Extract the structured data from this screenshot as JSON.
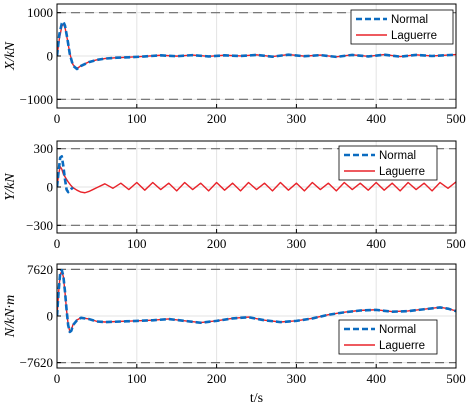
{
  "colors": {
    "normal": "#0a6bc0",
    "laguerre": "#e8232a",
    "limit": "#6b6b6b",
    "grid": "#e3e3e3"
  },
  "chart_data": [
    {
      "type": "line",
      "ylabel": "X/kN",
      "xlim": [
        0,
        500
      ],
      "ylim": [
        -1200,
        1200
      ],
      "yticks": [
        -1000,
        0,
        1000
      ],
      "ytick_labels": [
        "−1000",
        "0",
        "1000"
      ],
      "xticks": [
        0,
        100,
        200,
        300,
        400,
        500
      ],
      "xtick_labels": [
        "0",
        "100",
        "200",
        "300",
        "400",
        "500"
      ],
      "limits": [
        1000,
        -1000
      ],
      "grid": true,
      "legend": {
        "position": "top-right",
        "entries": [
          "Normal",
          "Laguerre"
        ]
      },
      "series": [
        {
          "name": "Normal",
          "style": "dashed",
          "x": [
            0,
            3,
            6,
            8,
            10,
            13,
            16,
            20,
            25,
            30,
            40,
            50,
            60,
            75,
            90,
            110,
            130,
            150,
            170,
            190,
            210,
            230,
            250,
            270,
            290,
            310,
            330,
            350,
            370,
            390,
            410,
            430,
            450,
            470,
            490,
            500
          ],
          "y": [
            0,
            500,
            750,
            790,
            700,
            400,
            50,
            -220,
            -300,
            -230,
            -140,
            -90,
            -60,
            -40,
            -30,
            -10,
            15,
            -5,
            20,
            -10,
            15,
            0,
            25,
            -15,
            30,
            -5,
            20,
            -20,
            25,
            -10,
            30,
            -15,
            25,
            0,
            20,
            30
          ]
        },
        {
          "name": "Laguerre",
          "style": "solid",
          "x": [
            0,
            3,
            6,
            8,
            10,
            13,
            16,
            20,
            25,
            30,
            40,
            50,
            60,
            75,
            90,
            110,
            130,
            150,
            170,
            190,
            210,
            230,
            250,
            270,
            290,
            310,
            330,
            350,
            370,
            390,
            410,
            430,
            450,
            470,
            490,
            500
          ],
          "y": [
            0,
            400,
            680,
            740,
            660,
            380,
            60,
            -200,
            -290,
            -225,
            -135,
            -88,
            -58,
            -38,
            -28,
            -8,
            17,
            -3,
            22,
            -8,
            17,
            2,
            27,
            -13,
            32,
            -3,
            22,
            -18,
            27,
            -8,
            32,
            -13,
            27,
            2,
            22,
            32
          ]
        }
      ]
    },
    {
      "type": "line",
      "ylabel": "Y/kN",
      "xlim": [
        0,
        500
      ],
      "ylim": [
        -360,
        360
      ],
      "yticks": [
        -300,
        0,
        300
      ],
      "ytick_labels": [
        "−300",
        "0",
        "300"
      ],
      "xticks": [
        0,
        100,
        200,
        300,
        400,
        500
      ],
      "xtick_labels": [
        "0",
        "100",
        "200",
        "300",
        "400",
        "500"
      ],
      "limits": [
        300,
        -300
      ],
      "grid": true,
      "legend": {
        "position": "top-right",
        "entries": [
          "Normal",
          "Laguerre"
        ]
      },
      "series": [
        {
          "name": "Normal",
          "style": "dashed",
          "x": [
            0,
            2,
            4,
            6,
            8,
            10,
            12,
            14,
            16,
            18,
            20
          ],
          "y": [
            0,
            120,
            230,
            240,
            160,
            60,
            -20,
            -40,
            -30,
            -15,
            -5
          ]
        },
        {
          "name": "Laguerre",
          "style": "solid",
          "x": [
            0,
            2,
            4,
            6,
            8,
            10,
            12,
            14,
            17,
            20,
            25,
            30,
            35,
            40,
            45,
            50,
            60,
            70,
            80,
            90,
            100,
            110,
            120,
            130,
            140,
            150,
            160,
            170,
            180,
            190,
            200,
            210,
            220,
            230,
            240,
            250,
            260,
            270,
            280,
            290,
            300,
            310,
            320,
            330,
            340,
            350,
            360,
            370,
            380,
            390,
            400,
            410,
            420,
            430,
            440,
            450,
            460,
            470,
            480,
            490,
            500
          ],
          "y": [
            0,
            100,
            160,
            140,
            100,
            80,
            60,
            40,
            15,
            -5,
            -25,
            -40,
            -45,
            -35,
            -20,
            -5,
            25,
            -10,
            30,
            -20,
            35,
            -25,
            35,
            -20,
            30,
            -30,
            35,
            -20,
            30,
            -30,
            35,
            -25,
            30,
            -30,
            35,
            -20,
            30,
            -30,
            35,
            -25,
            30,
            -30,
            35,
            -20,
            30,
            -30,
            35,
            -20,
            30,
            -25,
            35,
            -25,
            30,
            -30,
            35,
            -20,
            30,
            -30,
            35,
            -10,
            40
          ]
        }
      ]
    },
    {
      "type": "line",
      "ylabel": "N/kN·m",
      "xlabel": "t/s",
      "xlim": [
        0,
        500
      ],
      "ylim": [
        -8500,
        8500
      ],
      "yticks": [
        -7620,
        0,
        7620
      ],
      "ytick_labels": [
        "−7620",
        "0",
        "7620"
      ],
      "xticks": [
        0,
        100,
        200,
        300,
        400,
        500
      ],
      "xtick_labels": [
        "0",
        "100",
        "200",
        "300",
        "400",
        "500"
      ],
      "limits": [
        7620,
        -7620
      ],
      "grid": true,
      "legend": {
        "position": "bottom-right",
        "entries": [
          "Normal",
          "Laguerre"
        ]
      },
      "series": [
        {
          "name": "Normal",
          "style": "dashed",
          "x": [
            0,
            2,
            4,
            6,
            8,
            10,
            12,
            14,
            16,
            18,
            20,
            25,
            30,
            40,
            50,
            60,
            80,
            100,
            120,
            140,
            160,
            180,
            200,
            220,
            240,
            260,
            280,
            300,
            320,
            340,
            360,
            380,
            400,
            420,
            440,
            460,
            480,
            490,
            500
          ],
          "y": [
            0,
            4000,
            7000,
            7500,
            6500,
            4000,
            1000,
            -1500,
            -2600,
            -2400,
            -1500,
            -700,
            -300,
            -500,
            -900,
            -1000,
            -900,
            -800,
            -700,
            -500,
            -800,
            -1100,
            -800,
            -400,
            -200,
            -700,
            -1000,
            -800,
            -400,
            200,
            600,
            900,
            1000,
            700,
            800,
            1100,
            1400,
            1200,
            800
          ]
        },
        {
          "name": "Laguerre",
          "style": "solid",
          "x": [
            0,
            2,
            4,
            6,
            8,
            10,
            12,
            14,
            16,
            18,
            20,
            25,
            30,
            40,
            50,
            60,
            80,
            100,
            120,
            140,
            160,
            180,
            200,
            220,
            240,
            260,
            280,
            300,
            320,
            340,
            360,
            380,
            400,
            420,
            440,
            460,
            480,
            490,
            500
          ],
          "y": [
            0,
            3800,
            6800,
            7300,
            6400,
            3900,
            900,
            -1400,
            -2500,
            -2300,
            -1400,
            -650,
            -280,
            -480,
            -880,
            -980,
            -880,
            -780,
            -680,
            -480,
            -780,
            -1080,
            -780,
            -380,
            -180,
            -680,
            -980,
            -780,
            -380,
            220,
            620,
            920,
            1020,
            720,
            820,
            1120,
            1420,
            1220,
            820
          ]
        }
      ]
    }
  ]
}
